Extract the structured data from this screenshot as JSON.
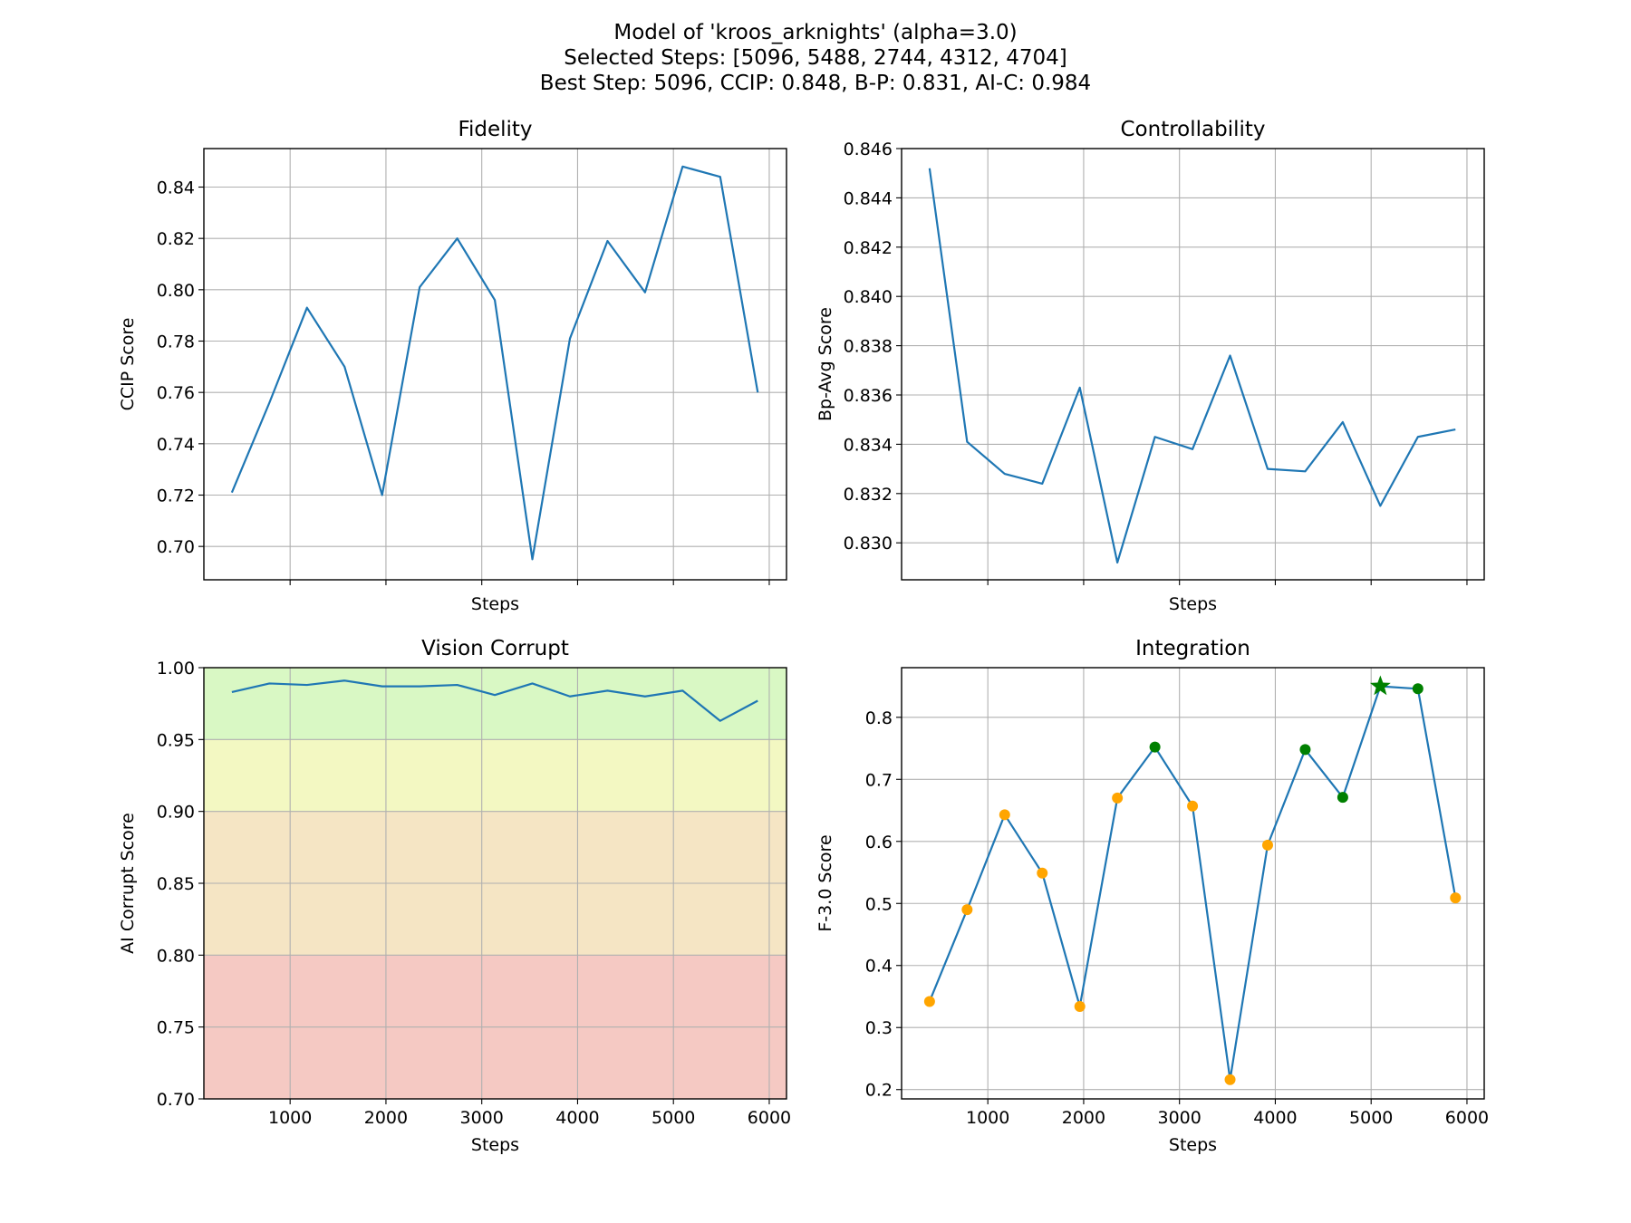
{
  "figure": {
    "title_lines": [
      "Model of 'kroos_arknights' (alpha=3.0)",
      "Selected Steps: [5096, 5488, 2744, 4312, 4704]",
      "Best Step: 5096, CCIP: 0.848, B-P: 0.831, AI-C: 0.984"
    ]
  },
  "colors": {
    "line": "#1f77b4",
    "grid": "#b0b0b0",
    "point_normal": "#ffa500",
    "point_selected": "#008000",
    "band_green": "#d9f8c4",
    "band_yellow": "#f3f8c2",
    "band_orange": "#f5e5c4",
    "band_red": "#f5c9c3"
  },
  "chart_data": [
    {
      "type": "line",
      "title": "Fidelity",
      "xlabel": "Steps",
      "ylabel": "CCIP Score",
      "xlim": [
        100,
        6180
      ],
      "ylim": [
        0.687,
        0.855
      ],
      "x_ticks": [
        1000,
        2000,
        3000,
        4000,
        5000,
        6000
      ],
      "show_x_tick_labels": false,
      "y_ticks": [
        0.7,
        0.72,
        0.74,
        0.76,
        0.78,
        0.8,
        0.82,
        0.84
      ],
      "y_tick_labels": [
        "0.70",
        "0.72",
        "0.74",
        "0.76",
        "0.78",
        "0.80",
        "0.82",
        "0.84"
      ],
      "grid": true,
      "x": [
        392,
        784,
        1176,
        1568,
        1960,
        2352,
        2744,
        3136,
        3528,
        3920,
        4312,
        4704,
        5096,
        5488,
        5880
      ],
      "series": [
        {
          "values": [
            0.721,
            0.756,
            0.793,
            0.77,
            0.72,
            0.801,
            0.82,
            0.796,
            0.695,
            0.781,
            0.819,
            0.799,
            0.848,
            0.844,
            0.76
          ]
        }
      ]
    },
    {
      "type": "line",
      "title": "Controllability",
      "xlabel": "Steps",
      "ylabel": "Bp-Avg Score",
      "xlim": [
        100,
        6180
      ],
      "ylim": [
        0.8285,
        0.846
      ],
      "x_ticks": [
        1000,
        2000,
        3000,
        4000,
        5000,
        6000
      ],
      "show_x_tick_labels": false,
      "y_ticks": [
        0.83,
        0.832,
        0.834,
        0.836,
        0.838,
        0.84,
        0.842,
        0.844,
        0.846
      ],
      "y_tick_labels": [
        "0.830",
        "0.832",
        "0.834",
        "0.836",
        "0.838",
        "0.840",
        "0.842",
        "0.844",
        "0.846"
      ],
      "grid": true,
      "x": [
        392,
        784,
        1176,
        1568,
        1960,
        2352,
        2744,
        3136,
        3528,
        3920,
        4312,
        4704,
        5096,
        5488,
        5880
      ],
      "series": [
        {
          "values": [
            0.8452,
            0.8341,
            0.8328,
            0.8324,
            0.8363,
            0.8292,
            0.8343,
            0.8338,
            0.8376,
            0.833,
            0.8329,
            0.8349,
            0.8315,
            0.8343,
            0.8346
          ]
        }
      ]
    },
    {
      "type": "line",
      "title": "Vision Corrupt",
      "xlabel": "Steps",
      "ylabel": "AI Corrupt Score",
      "xlim": [
        100,
        6180
      ],
      "ylim": [
        0.7,
        1.0
      ],
      "x_ticks": [
        1000,
        2000,
        3000,
        4000,
        5000,
        6000
      ],
      "x_tick_labels": [
        "1000",
        "2000",
        "3000",
        "4000",
        "5000",
        "6000"
      ],
      "show_x_tick_labels": true,
      "y_ticks": [
        0.7,
        0.75,
        0.8,
        0.85,
        0.9,
        0.95,
        1.0
      ],
      "y_tick_labels": [
        "0.70",
        "0.75",
        "0.80",
        "0.85",
        "0.90",
        "0.95",
        "1.00"
      ],
      "grid": true,
      "bands": [
        {
          "from": 0.95,
          "to": 1.0,
          "color": "band_green"
        },
        {
          "from": 0.9,
          "to": 0.95,
          "color": "band_yellow"
        },
        {
          "from": 0.8,
          "to": 0.9,
          "color": "band_orange"
        },
        {
          "from": 0.7,
          "to": 0.8,
          "color": "band_red"
        }
      ],
      "x": [
        392,
        784,
        1176,
        1568,
        1960,
        2352,
        2744,
        3136,
        3528,
        3920,
        4312,
        4704,
        5096,
        5488,
        5880
      ],
      "series": [
        {
          "values": [
            0.983,
            0.989,
            0.988,
            0.991,
            0.987,
            0.987,
            0.988,
            0.981,
            0.989,
            0.98,
            0.984,
            0.98,
            0.984,
            0.963,
            0.977
          ]
        }
      ]
    },
    {
      "type": "line",
      "title": "Integration",
      "xlabel": "Steps",
      "ylabel": "F-3.0 Score",
      "xlim": [
        100,
        6180
      ],
      "ylim": [
        0.185,
        0.88
      ],
      "x_ticks": [
        1000,
        2000,
        3000,
        4000,
        5000,
        6000
      ],
      "x_tick_labels": [
        "1000",
        "2000",
        "3000",
        "4000",
        "5000",
        "6000"
      ],
      "show_x_tick_labels": true,
      "y_ticks": [
        0.2,
        0.3,
        0.4,
        0.5,
        0.6,
        0.7,
        0.8
      ],
      "y_tick_labels": [
        "0.2",
        "0.3",
        "0.4",
        "0.5",
        "0.6",
        "0.7",
        "0.8"
      ],
      "grid": true,
      "x": [
        392,
        784,
        1176,
        1568,
        1960,
        2352,
        2744,
        3136,
        3528,
        3920,
        4312,
        4704,
        5096,
        5488,
        5880
      ],
      "series": [
        {
          "values": [
            0.342,
            0.49,
            0.643,
            0.549,
            0.334,
            0.67,
            0.752,
            0.657,
            0.216,
            0.594,
            0.748,
            0.671,
            0.85,
            0.846,
            0.509
          ]
        }
      ],
      "point_types": [
        "normal",
        "normal",
        "normal",
        "normal",
        "normal",
        "normal",
        "selected",
        "normal",
        "normal",
        "normal",
        "selected",
        "selected",
        "best",
        "selected",
        "normal"
      ]
    }
  ]
}
